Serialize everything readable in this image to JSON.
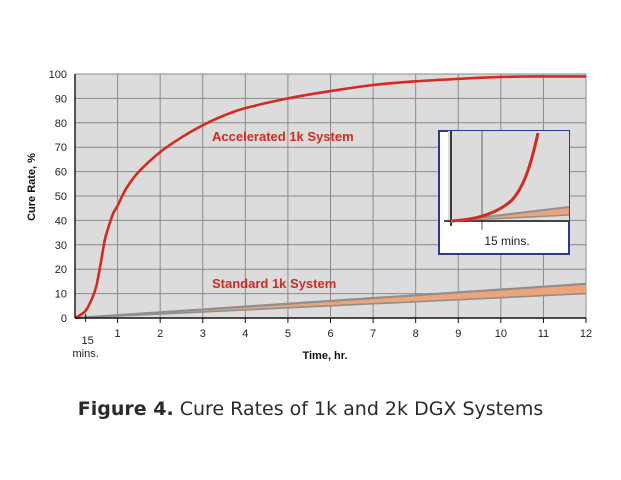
{
  "chart_data": {
    "type": "line",
    "title": "",
    "xlabel": "Time, hr.",
    "ylabel": "Cure Rate, %",
    "xlim": [
      0,
      12
    ],
    "ylim": [
      0,
      100
    ],
    "x_ticks": [
      1,
      2,
      3,
      4,
      5,
      6,
      7,
      8,
      9,
      10,
      11,
      12
    ],
    "y_ticks": [
      0,
      10,
      20,
      30,
      40,
      50,
      60,
      70,
      80,
      90,
      100
    ],
    "extra_x_tick": {
      "value": 0.25,
      "label_line1": "15",
      "label_line2": "mins."
    },
    "grid": true,
    "colors": {
      "accelerated": "#d42a1f",
      "standard_band": "#eda47a",
      "standard_edge": "#8f8f8f",
      "background": "#dcdcdc",
      "inset_border": "#2b3a8f"
    },
    "series": [
      {
        "name": "Accelerated 1k System",
        "x": [
          0,
          0.1,
          0.25,
          0.4,
          0.5,
          0.6,
          0.7,
          0.8,
          0.9,
          1.0,
          1.2,
          1.5,
          2.0,
          2.5,
          3.0,
          3.5,
          4.0,
          5.0,
          6.0,
          7.0,
          8.0,
          9.0,
          10.0,
          11.0,
          12.0
        ],
        "y": [
          0,
          1,
          3,
          8,
          13,
          22,
          32,
          38,
          43,
          46,
          53,
          60,
          68,
          74,
          79,
          83,
          86,
          90,
          93,
          95.5,
          97,
          98,
          98.8,
          99,
          99
        ]
      },
      {
        "name": "Standard 1k System",
        "x": [
          0,
          12
        ],
        "y_low": [
          0,
          10
        ],
        "y_high": [
          0,
          14
        ]
      }
    ],
    "inset": {
      "label": "15 mins."
    }
  },
  "caption": {
    "figure": "Figure 4.",
    "text": " Cure Rates of 1k and 2k DGX Systems"
  }
}
